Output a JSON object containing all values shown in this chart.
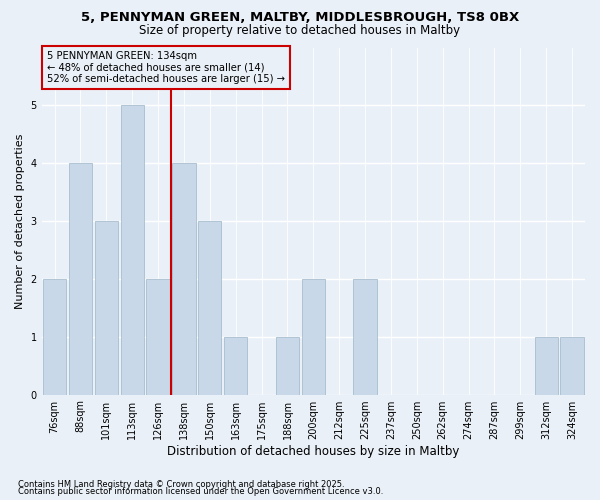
{
  "title1": "5, PENNYMAN GREEN, MALTBY, MIDDLESBROUGH, TS8 0BX",
  "title2": "Size of property relative to detached houses in Maltby",
  "xlabel": "Distribution of detached houses by size in Maltby",
  "ylabel": "Number of detached properties",
  "categories": [
    "76sqm",
    "88sqm",
    "101sqm",
    "113sqm",
    "126sqm",
    "138sqm",
    "150sqm",
    "163sqm",
    "175sqm",
    "188sqm",
    "200sqm",
    "212sqm",
    "225sqm",
    "237sqm",
    "250sqm",
    "262sqm",
    "274sqm",
    "287sqm",
    "299sqm",
    "312sqm",
    "324sqm"
  ],
  "values": [
    2,
    4,
    3,
    5,
    2,
    4,
    3,
    1,
    0,
    1,
    2,
    0,
    2,
    0,
    0,
    0,
    0,
    0,
    0,
    1,
    1
  ],
  "bar_color": "#c8d8e8",
  "bar_edge_color": "#a8bece",
  "ref_line_label": "5 PENNYMAN GREEN: 134sqm",
  "annotation_line1": "← 48% of detached houses are smaller (14)",
  "annotation_line2": "52% of semi-detached houses are larger (15) →",
  "box_color": "#cc0000",
  "ylim": [
    0,
    6
  ],
  "yticks": [
    0,
    1,
    2,
    3,
    4,
    5
  ],
  "footnote1": "Contains HM Land Registry data © Crown copyright and database right 2025.",
  "footnote2": "Contains public sector information licensed under the Open Government Licence v3.0.",
  "bg_color": "#eaf0f8"
}
